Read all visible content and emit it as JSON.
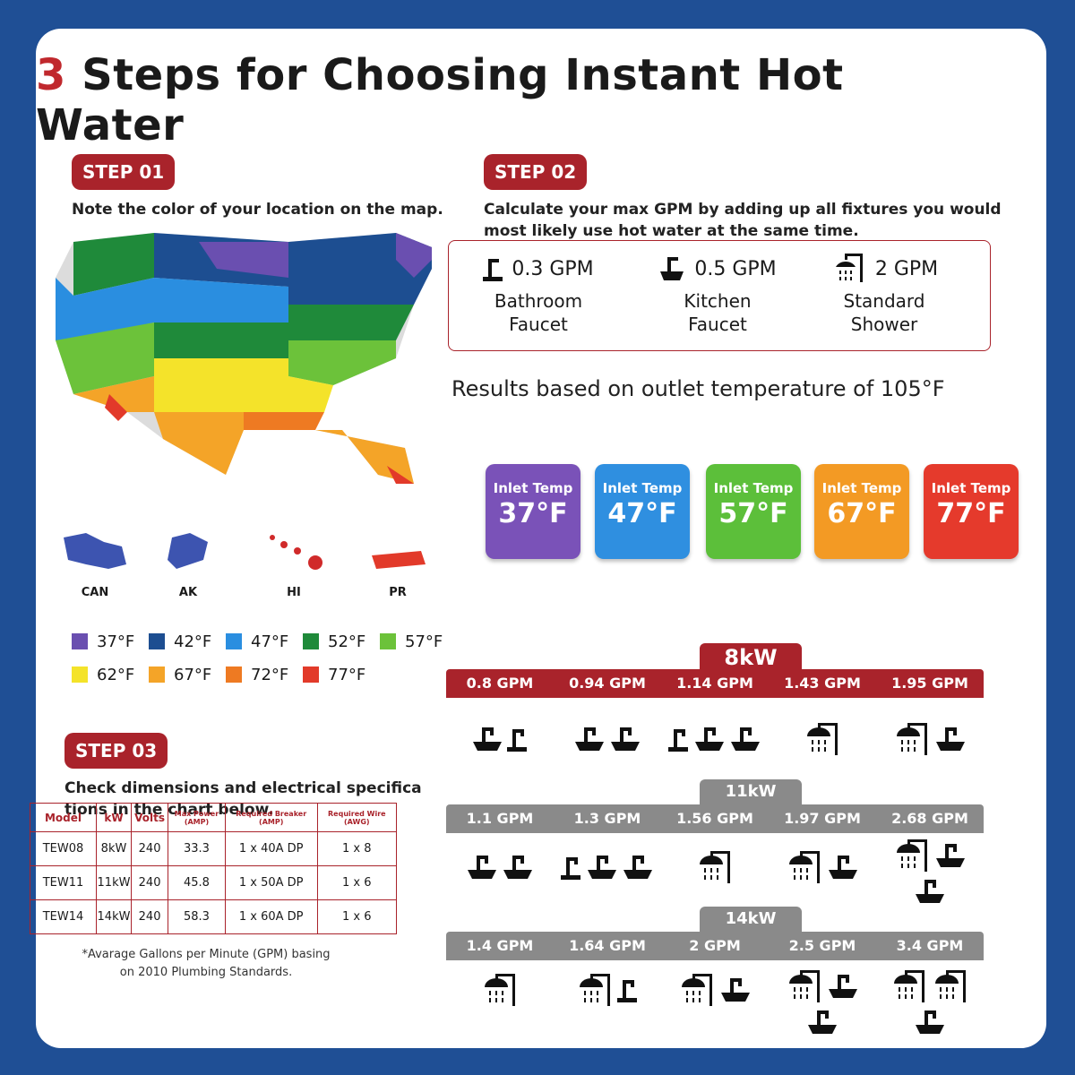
{
  "title": {
    "number": "3",
    "text": "Steps for Choosing Instant Hot Water"
  },
  "step1": {
    "badge": "STEP 01",
    "instruction": "Note the color of your location on the map.",
    "territories": [
      "CAN",
      "AK",
      "HI",
      "PR"
    ],
    "legend": [
      {
        "label": "37°F",
        "color": "#6a4fb0"
      },
      {
        "label": "42°F",
        "color": "#1d4e91"
      },
      {
        "label": "47°F",
        "color": "#2a8ee0"
      },
      {
        "label": "52°F",
        "color": "#1f8a3a"
      },
      {
        "label": "57°F",
        "color": "#6cc23a"
      },
      {
        "label": "62°F",
        "color": "#f4e32a"
      },
      {
        "label": "67°F",
        "color": "#f4a428"
      },
      {
        "label": "72°F",
        "color": "#ee7a22"
      },
      {
        "label": "77°F",
        "color": "#e23a2a"
      }
    ]
  },
  "step2": {
    "badge": "STEP 02",
    "instruction_line1": "Calculate your max GPM by adding up all fixtures you would",
    "instruction_line2": "most likely use hot water at the same time.",
    "fixtures": [
      {
        "gpm": "0.3 GPM",
        "name1": "Bathroom",
        "name2": "Faucet",
        "icon": "bathroom-faucet-icon"
      },
      {
        "gpm": "0.5 GPM",
        "name1": "Kitchen",
        "name2": "Faucet",
        "icon": "kitchen-faucet-icon"
      },
      {
        "gpm": "2 GPM",
        "name1": "Standard",
        "name2": "Shower",
        "icon": "shower-icon"
      }
    ],
    "results_note": "Results based on outlet temperature of 105°F",
    "inlet_temps": [
      {
        "label": "Inlet Temp",
        "value": "37°F",
        "color": "#7a52b8"
      },
      {
        "label": "Inlet Temp",
        "value": "47°F",
        "color": "#2f8fe0"
      },
      {
        "label": "Inlet Temp",
        "value": "57°F",
        "color": "#5cbf3a"
      },
      {
        "label": "Inlet Temp",
        "value": "67°F",
        "color": "#f39a24"
      },
      {
        "label": "Inlet Temp",
        "value": "77°F",
        "color": "#e53a2c"
      }
    ]
  },
  "tiers": [
    {
      "name": "8kW",
      "color": "#a9232b",
      "gpms": [
        "0.8 GPM",
        "0.94 GPM",
        "1.14 GPM",
        "1.43 GPM",
        "1.95 GPM"
      ]
    },
    {
      "name": "11kW",
      "color": "#8a8a8a",
      "gpms": [
        "1.1 GPM",
        "1.3 GPM",
        "1.56 GPM",
        "1.97 GPM",
        "2.68 GPM"
      ]
    },
    {
      "name": "14kW",
      "color": "#8a8a8a",
      "gpms": [
        "1.4 GPM",
        "1.64 GPM",
        "2 GPM",
        "2.5 GPM",
        "3.4 GPM"
      ]
    }
  ],
  "step3": {
    "badge": "STEP 03",
    "instruction_line1": "Check dimensions and electrical specifica",
    "instruction_line2": "tions in the chart below.",
    "table": {
      "headers": [
        "Model",
        "kW",
        "Volts",
        "Max Power (AMP)",
        "Required Breaker (AMP)",
        "Required Wire (AWG)"
      ],
      "rows": [
        [
          "TEW08",
          "8kW",
          "240",
          "33.3",
          "1 x 40A DP",
          "1 x 8"
        ],
        [
          "TEW11",
          "11kW",
          "240",
          "45.8",
          "1 x 50A DP",
          "1 x 6"
        ],
        [
          "TEW14",
          "14kW",
          "240",
          "58.3",
          "1 x 60A DP",
          "1 x 6"
        ]
      ]
    },
    "footnote_line1": "*Avarage Gallons per Minute (GPM) basing",
    "footnote_line2": "on 2010 Plumbing Standards."
  }
}
